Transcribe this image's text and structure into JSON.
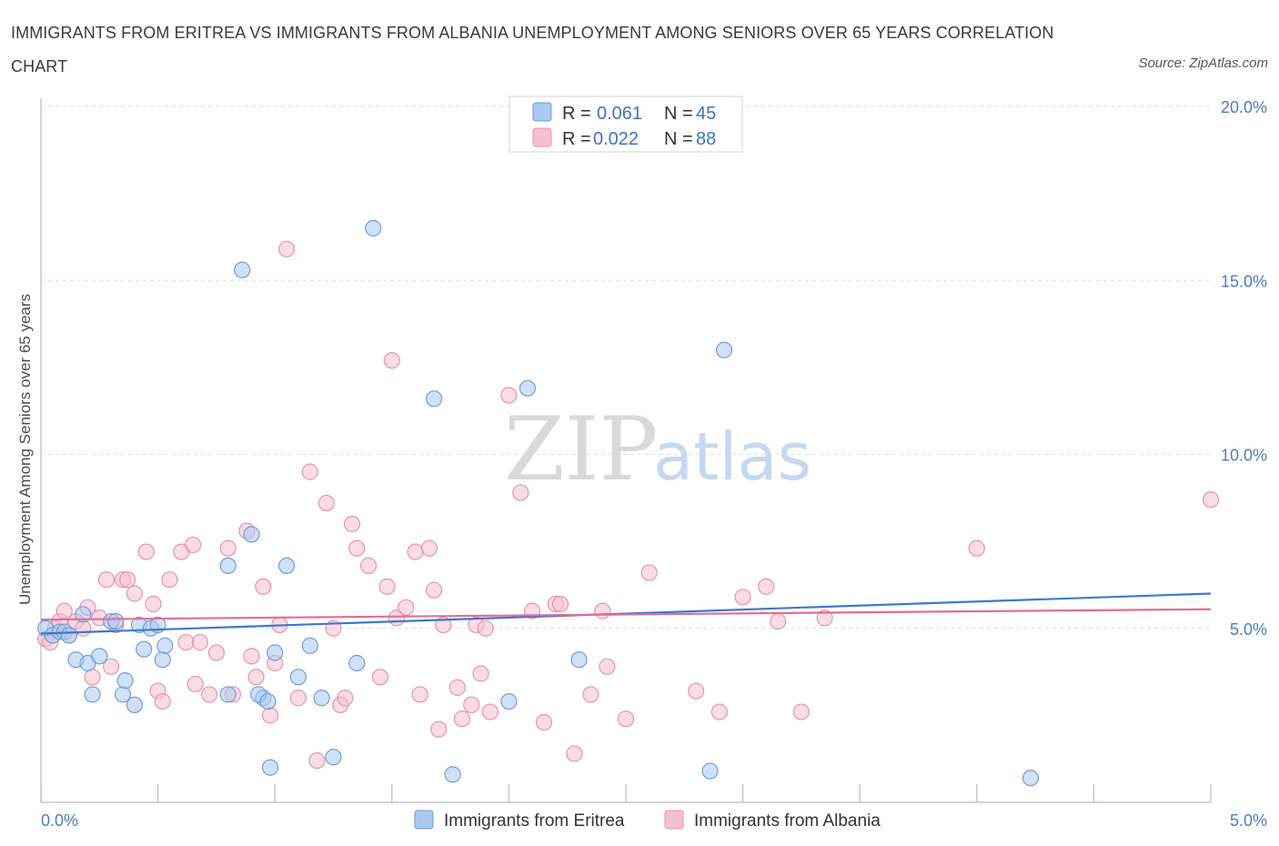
{
  "title": "IMMIGRANTS FROM ERITREA VS IMMIGRANTS FROM ALBANIA UNEMPLOYMENT AMONG SENIORS OVER 65 YEARS CORRELATION CHART",
  "source": "Source: ZipAtlas.com",
  "watermark": {
    "zip": "ZIP",
    "atlas": "atlas"
  },
  "colors": {
    "eritrea_fill": "#aac8f0",
    "eritrea_stroke": "#6f9ed8",
    "eritrea_line": "#3d79cc",
    "albania_fill": "#f6bfd0",
    "albania_stroke": "#e793b0",
    "albania_line": "#e26d96"
  },
  "legend": {
    "rows": [
      {
        "r_label": "R =",
        "r_value": "0.061",
        "n_label": "N =",
        "n_value": "45"
      },
      {
        "r_label": "R =",
        "r_value": "0.022",
        "n_label": "N =",
        "n_value": "88"
      }
    ]
  },
  "bottom_legend": [
    "Immigrants from Eritrea",
    "Immigrants from Albania"
  ],
  "chart_data": {
    "type": "scatter",
    "title": "IMMIGRANTS FROM ERITREA VS IMMIGRANTS FROM ALBANIA UNEMPLOYMENT AMONG SENIORS OVER 65 YEARS CORRELATION CHART",
    "xlabel": "",
    "ylabel": "Unemployment Among Seniors over 65 years",
    "xlim": [
      0,
      5
    ],
    "ylim": [
      0,
      20
    ],
    "x_tick_labels": [
      "0.0%",
      "5.0%"
    ],
    "y_tick_labels": [
      "5.0%",
      "10.0%",
      "15.0%",
      "20.0%"
    ],
    "y_ticks": [
      5,
      10,
      15,
      20
    ],
    "series": [
      {
        "name": "Immigrants from Eritrea",
        "trend": [
          [
            0,
            4.85
          ],
          [
            5,
            6.0
          ]
        ],
        "points": [
          [
            0.02,
            5.0
          ],
          [
            0.05,
            4.8
          ],
          [
            0.08,
            4.9
          ],
          [
            0.1,
            4.9
          ],
          [
            0.12,
            4.8
          ],
          [
            0.15,
            4.1
          ],
          [
            0.18,
            5.4
          ],
          [
            0.2,
            4.0
          ],
          [
            0.22,
            3.1
          ],
          [
            0.25,
            4.2
          ],
          [
            0.3,
            5.2
          ],
          [
            0.32,
            5.2
          ],
          [
            0.35,
            3.1
          ],
          [
            0.36,
            3.5
          ],
          [
            0.4,
            2.8
          ],
          [
            0.42,
            5.1
          ],
          [
            0.44,
            4.4
          ],
          [
            0.47,
            5.0
          ],
          [
            0.5,
            5.1
          ],
          [
            0.52,
            4.1
          ],
          [
            0.53,
            4.5
          ],
          [
            0.8,
            3.1
          ],
          [
            0.8,
            6.8
          ],
          [
            0.86,
            15.3
          ],
          [
            0.9,
            7.7
          ],
          [
            0.95,
            3.0
          ],
          [
            0.93,
            3.1
          ],
          [
            0.97,
            2.9
          ],
          [
            1.0,
            4.3
          ],
          [
            1.05,
            6.8
          ],
          [
            1.1,
            3.6
          ],
          [
            1.15,
            4.5
          ],
          [
            1.2,
            3.0
          ],
          [
            1.25,
            1.3
          ],
          [
            1.35,
            4.0
          ],
          [
            1.42,
            16.5
          ],
          [
            1.68,
            11.6
          ],
          [
            1.76,
            0.8
          ],
          [
            2.0,
            2.9
          ],
          [
            2.08,
            11.9
          ],
          [
            2.3,
            4.1
          ],
          [
            2.86,
            0.9
          ],
          [
            2.92,
            13.0
          ],
          [
            4.23,
            0.7
          ],
          [
            0.98,
            1.0
          ]
        ]
      },
      {
        "name": "Immigrants from Albania",
        "trend": [
          [
            0,
            5.25
          ],
          [
            5,
            5.55
          ]
        ],
        "points": [
          [
            0.02,
            4.7
          ],
          [
            0.04,
            4.6
          ],
          [
            0.06,
            5.0
          ],
          [
            0.08,
            5.2
          ],
          [
            0.1,
            5.5
          ],
          [
            0.12,
            4.8
          ],
          [
            0.15,
            5.2
          ],
          [
            0.18,
            5.0
          ],
          [
            0.2,
            5.6
          ],
          [
            0.22,
            3.6
          ],
          [
            0.25,
            5.3
          ],
          [
            0.28,
            6.4
          ],
          [
            0.3,
            3.9
          ],
          [
            0.32,
            5.1
          ],
          [
            0.35,
            6.4
          ],
          [
            0.37,
            6.4
          ],
          [
            0.4,
            6.0
          ],
          [
            0.45,
            7.2
          ],
          [
            0.48,
            5.7
          ],
          [
            0.5,
            3.2
          ],
          [
            0.52,
            2.9
          ],
          [
            0.55,
            6.4
          ],
          [
            0.6,
            7.2
          ],
          [
            0.62,
            4.6
          ],
          [
            0.65,
            7.4
          ],
          [
            0.66,
            3.4
          ],
          [
            0.68,
            4.6
          ],
          [
            0.72,
            3.1
          ],
          [
            0.75,
            4.3
          ],
          [
            0.8,
            7.3
          ],
          [
            0.82,
            3.1
          ],
          [
            0.88,
            7.8
          ],
          [
            0.9,
            4.2
          ],
          [
            0.92,
            3.6
          ],
          [
            0.95,
            6.2
          ],
          [
            0.98,
            2.5
          ],
          [
            1.0,
            4.0
          ],
          [
            1.02,
            5.1
          ],
          [
            1.05,
            15.9
          ],
          [
            1.1,
            3.0
          ],
          [
            1.15,
            9.5
          ],
          [
            1.18,
            1.2
          ],
          [
            1.22,
            8.6
          ],
          [
            1.25,
            5.0
          ],
          [
            1.28,
            2.8
          ],
          [
            1.3,
            3.0
          ],
          [
            1.33,
            8.0
          ],
          [
            1.35,
            7.3
          ],
          [
            1.4,
            6.8
          ],
          [
            1.45,
            3.6
          ],
          [
            1.48,
            6.2
          ],
          [
            1.5,
            12.7
          ],
          [
            1.52,
            5.3
          ],
          [
            1.56,
            5.6
          ],
          [
            1.6,
            7.2
          ],
          [
            1.62,
            3.1
          ],
          [
            1.66,
            7.3
          ],
          [
            1.68,
            6.1
          ],
          [
            1.7,
            2.1
          ],
          [
            1.72,
            5.1
          ],
          [
            1.78,
            3.3
          ],
          [
            1.8,
            2.4
          ],
          [
            1.84,
            2.8
          ],
          [
            1.86,
            5.1
          ],
          [
            1.88,
            3.7
          ],
          [
            1.9,
            5.0
          ],
          [
            1.92,
            2.6
          ],
          [
            2.0,
            11.7
          ],
          [
            2.05,
            8.9
          ],
          [
            2.1,
            5.5
          ],
          [
            2.15,
            2.3
          ],
          [
            2.2,
            5.7
          ],
          [
            2.22,
            5.7
          ],
          [
            2.28,
            1.4
          ],
          [
            2.35,
            3.1
          ],
          [
            2.4,
            5.5
          ],
          [
            2.42,
            3.9
          ],
          [
            2.5,
            2.4
          ],
          [
            2.6,
            6.6
          ],
          [
            2.8,
            3.2
          ],
          [
            2.9,
            2.6
          ],
          [
            3.0,
            5.9
          ],
          [
            3.1,
            6.2
          ],
          [
            3.15,
            5.2
          ],
          [
            3.25,
            2.6
          ],
          [
            3.35,
            5.3
          ],
          [
            4.0,
            7.3
          ],
          [
            5.0,
            8.7
          ]
        ]
      }
    ]
  }
}
